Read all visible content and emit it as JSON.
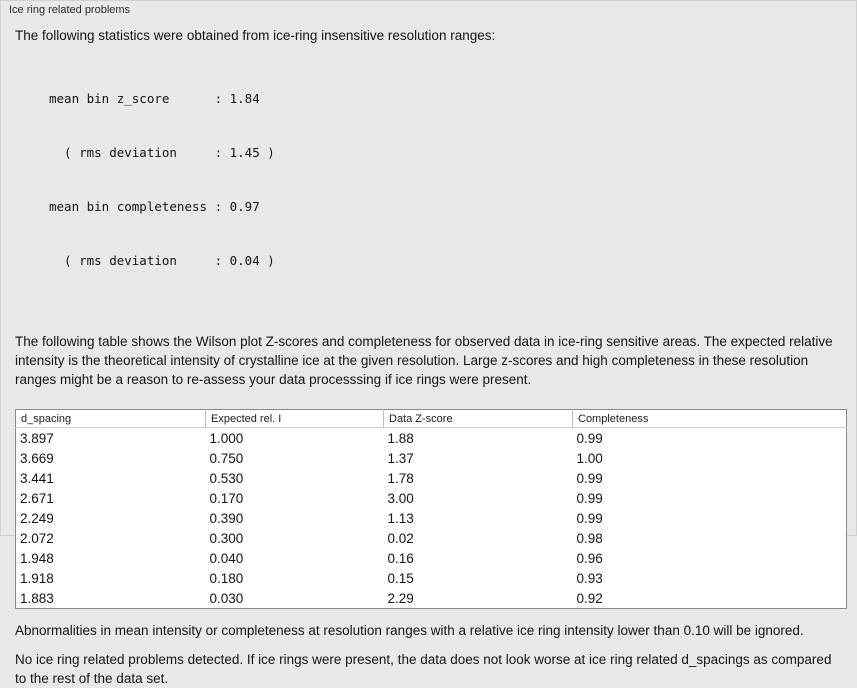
{
  "panel": {
    "title": "Ice ring related problems"
  },
  "stats": {
    "intro": "The following statistics were obtained from ice-ring insensitive resolution ranges:",
    "lines": [
      "mean bin z_score      : 1.84",
      "  ( rms deviation     : 1.45 )",
      "mean bin completeness : 0.97",
      "  ( rms deviation     : 0.04 )"
    ]
  },
  "table_intro": "The following table shows the Wilson plot Z-scores and completeness for observed data in ice-ring sensitive areas. The expected relative intensity is the theoretical intensity of crystalline ice at the given resolution. Large z-scores and high completeness in these resolution ranges might be a reason to re-assess your data processsing if ice rings were present.",
  "table": {
    "columns": [
      "d_spacing",
      "Expected rel. I",
      "Data Z-score",
      "Completeness"
    ],
    "rows": [
      [
        "3.897",
        "1.000",
        "1.88",
        "0.99"
      ],
      [
        "3.669",
        "0.750",
        "1.37",
        "1.00"
      ],
      [
        "3.441",
        "0.530",
        "1.78",
        "0.99"
      ],
      [
        "2.671",
        "0.170",
        "3.00",
        "0.99"
      ],
      [
        "2.249",
        "0.390",
        "1.13",
        "0.99"
      ],
      [
        "2.072",
        "0.300",
        "0.02",
        "0.98"
      ],
      [
        "1.948",
        "0.040",
        "0.16",
        "0.96"
      ],
      [
        "1.918",
        "0.180",
        "0.15",
        "0.93"
      ],
      [
        "1.883",
        "0.030",
        "2.29",
        "0.92"
      ]
    ]
  },
  "notes": [
    "Abnormalities in mean intensity or completeness at resolution ranges with a relative ice ring intensity lower than 0.10 will be ignored.",
    "No ice ring related problems detected. If ice rings were present, the data does not look worse at ice ring related d_spacings as compared to the rest of the data set."
  ],
  "colors": {
    "background": "#e8e8e8",
    "table_background": "#ffffff",
    "table_border": "#8a8a8a",
    "text": "#141414"
  }
}
